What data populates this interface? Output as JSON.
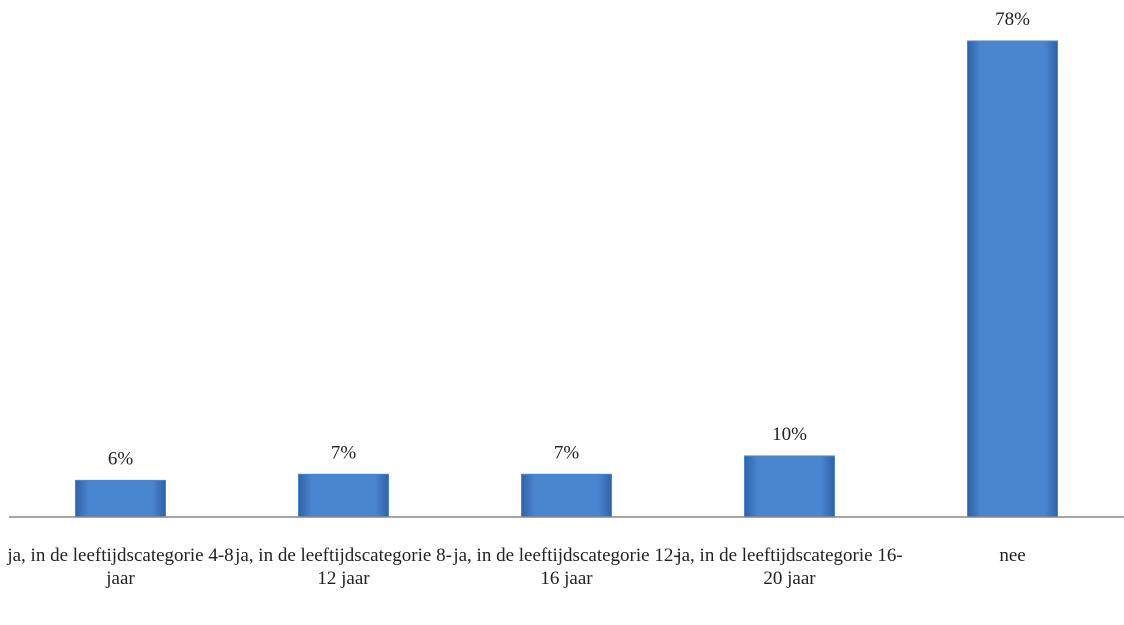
{
  "chart_data": {
    "type": "bar",
    "categories": [
      "ja, in de leeftijdscategorie 4-8 jaar",
      "ja, in de leeftijdscategorie 8-12 jaar",
      "ja, in de leeftijdscategorie 12-16 jaar",
      "ja, in de leeftijdscategorie 16-20 jaar",
      "nee"
    ],
    "values": [
      6,
      7,
      7,
      10,
      78
    ],
    "value_labels": [
      "6%",
      "7%",
      "7%",
      "10%",
      "78%"
    ],
    "color": "#4a86d0"
  }
}
